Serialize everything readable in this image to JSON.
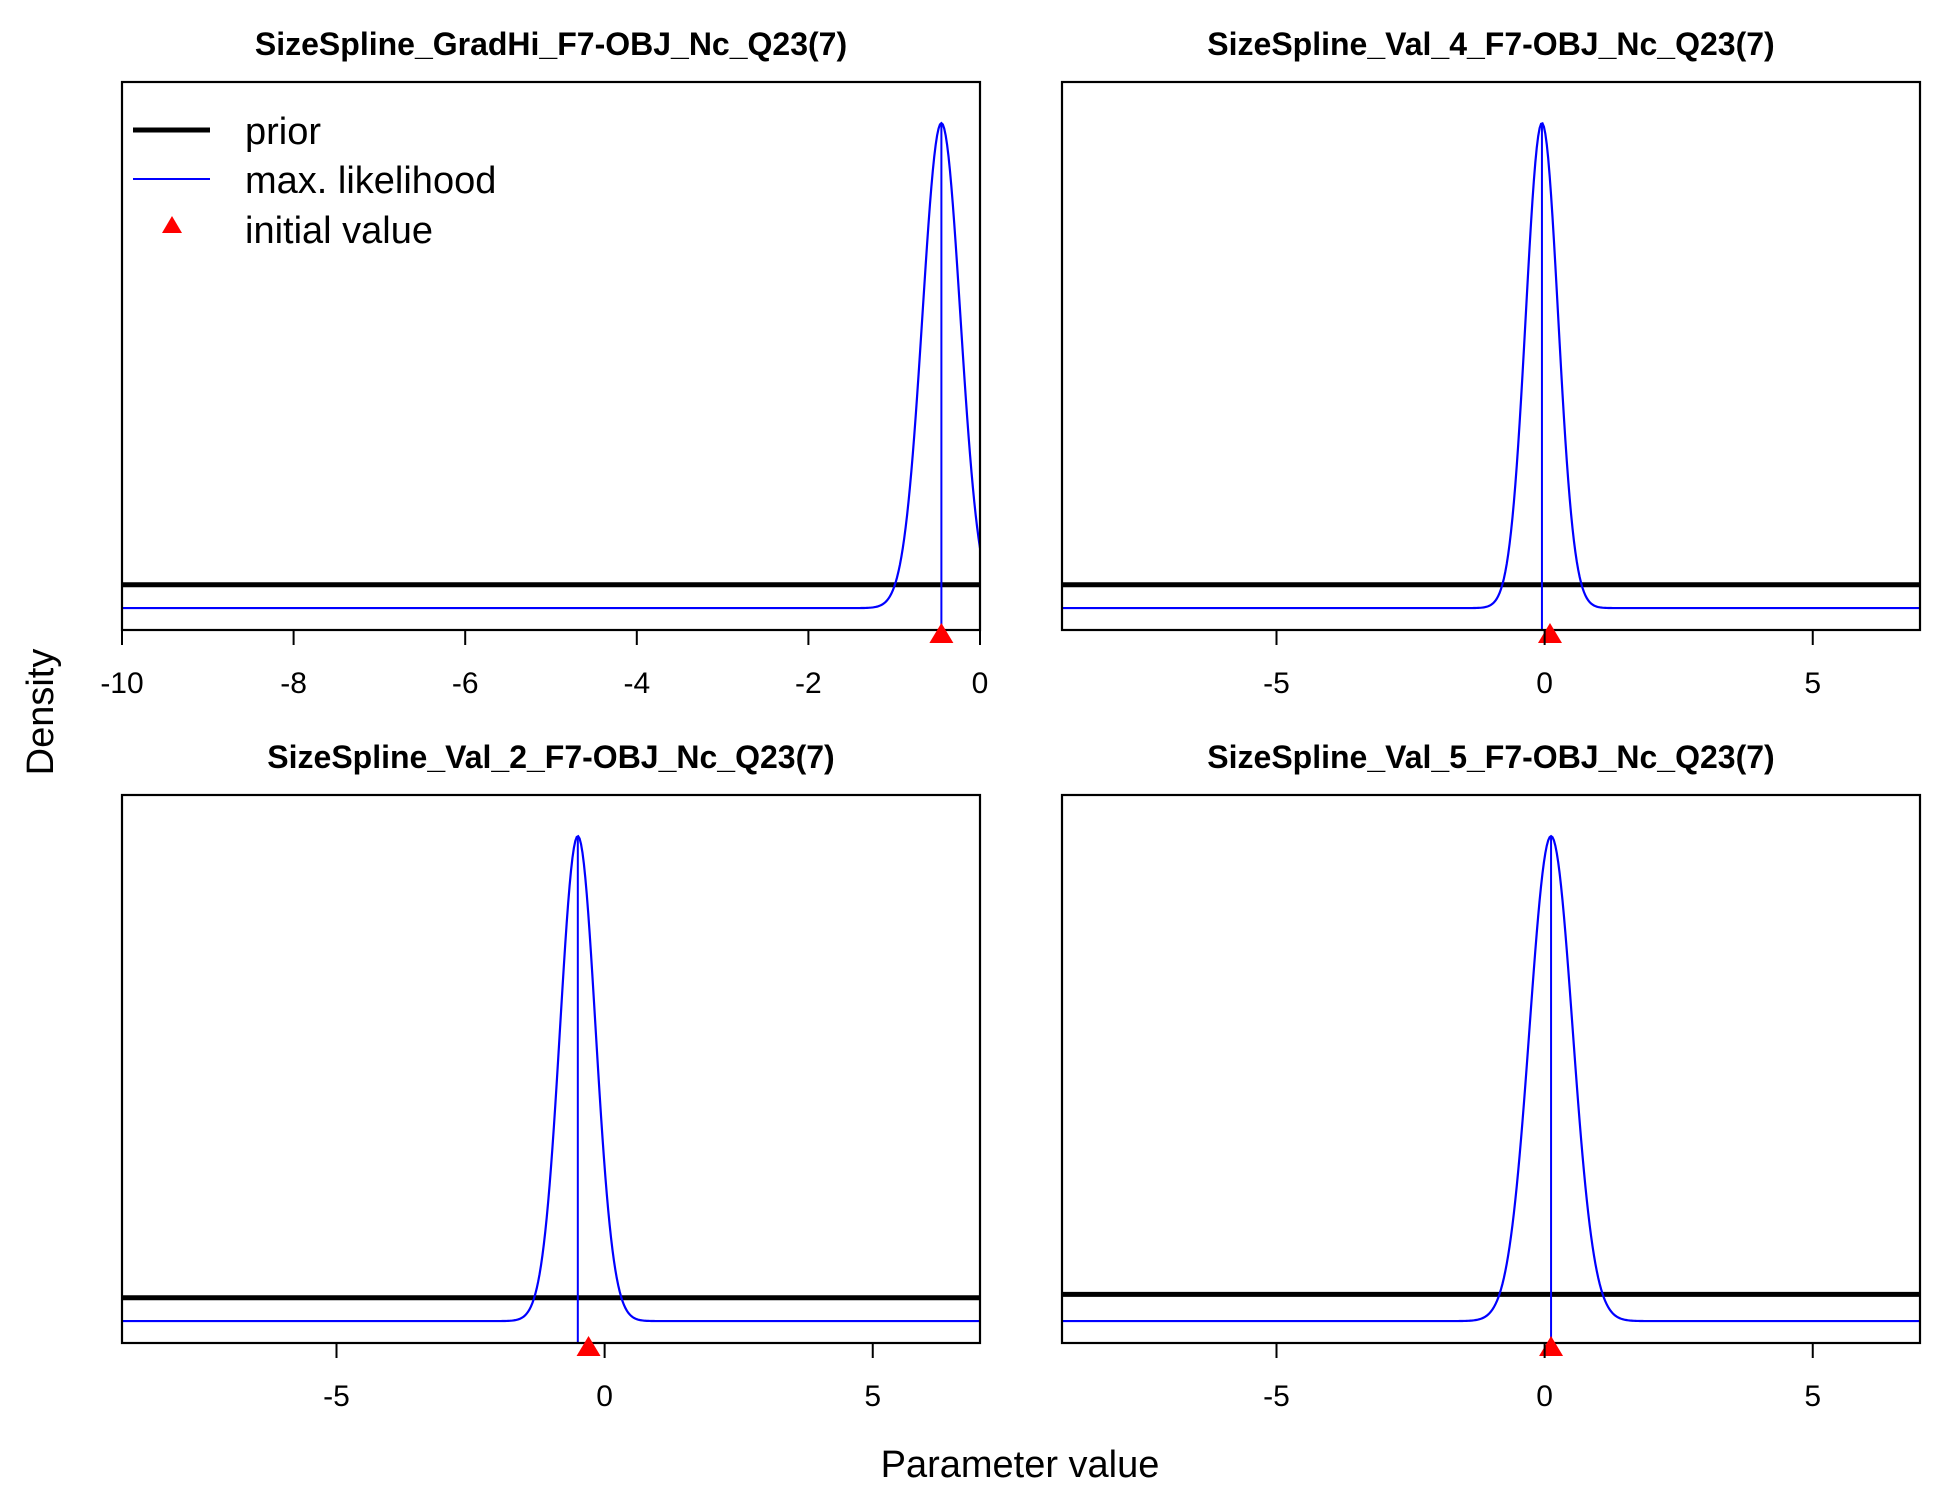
{
  "figure": {
    "ylabel": "Density",
    "xlabel": "Parameter value",
    "legend": {
      "placement": "top-left of first panel",
      "items": [
        {
          "label": "prior",
          "style": "thick-line",
          "color": "#000000"
        },
        {
          "label": "max. likelihood",
          "style": "thin-line",
          "color": "#0000ff"
        },
        {
          "label": "initial value",
          "style": "triangle",
          "color": "#ff0000"
        }
      ]
    },
    "colors": {
      "prior": "#000000",
      "mle": "#0000ff",
      "initial": "#ff0000"
    }
  },
  "chart_data": [
    {
      "type": "line",
      "title": "SizeSpline_GradHi_F7-OBJ_Nc_Q23(7)",
      "xlim": [
        -10,
        0
      ],
      "ticks": [
        -10,
        -8,
        -6,
        -4,
        -2,
        0
      ],
      "tick_labels": [
        "-10",
        "-8",
        "-6",
        "-4",
        "-2",
        "0"
      ],
      "series": [
        {
          "name": "prior",
          "kind": "uniform",
          "relative_height": 0.048
        },
        {
          "name": "max. likelihood",
          "kind": "normal",
          "mean": -0.45,
          "sd": 0.22
        }
      ],
      "initial_value": -0.45
    },
    {
      "type": "line",
      "title": "SizeSpline_Val_4_F7-OBJ_Nc_Q23(7)",
      "xlim": [
        -9,
        7
      ],
      "ticks": [
        -5,
        0,
        5
      ],
      "tick_labels": [
        "-5",
        "0",
        "5"
      ],
      "series": [
        {
          "name": "prior",
          "kind": "uniform",
          "relative_height": 0.048
        },
        {
          "name": "max. likelihood",
          "kind": "normal",
          "mean": -0.05,
          "sd": 0.3
        }
      ],
      "initial_value": 0.1
    },
    {
      "type": "line",
      "title": "SizeSpline_Val_2_F7-OBJ_Nc_Q23(7)",
      "xlim": [
        -9,
        7
      ],
      "ticks": [
        -5,
        0,
        5
      ],
      "tick_labels": [
        "-5",
        "0",
        "5"
      ],
      "series": [
        {
          "name": "prior",
          "kind": "uniform",
          "relative_height": 0.048
        },
        {
          "name": "max. likelihood",
          "kind": "normal",
          "mean": -0.5,
          "sd": 0.33
        }
      ],
      "initial_value": -0.3
    },
    {
      "type": "line",
      "title": "SizeSpline_Val_5_F7-OBJ_Nc_Q23(7)",
      "xlim": [
        -9,
        7
      ],
      "ticks": [
        -5,
        0,
        5
      ],
      "tick_labels": [
        "-5",
        "0",
        "5"
      ],
      "series": [
        {
          "name": "prior",
          "kind": "uniform",
          "relative_height": 0.055
        },
        {
          "name": "max. likelihood",
          "kind": "normal",
          "mean": 0.12,
          "sd": 0.4
        }
      ],
      "initial_value": 0.12
    }
  ]
}
